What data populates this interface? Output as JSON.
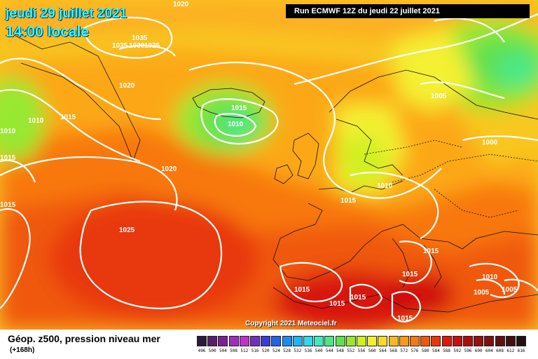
{
  "header": {
    "date": "jeudi 29 juillet 2021",
    "local_time": "14:00 locale",
    "run_info": "Run ECMWF 12Z du jeudi 22 juillet 2021"
  },
  "copyright": "Copyright 2021 Meteociel.fr",
  "footer": {
    "title": "Géop. z500, pression niveau mer",
    "lead_time": "(+168h)"
  },
  "isobar_labels": [
    "1020",
    "1035",
    "1035",
    "1030",
    "1025",
    "1020",
    "1015",
    "1010",
    "1015",
    "1010",
    "1015",
    "1010",
    "1015",
    "1005",
    "1000",
    "1020",
    "1010",
    "1015",
    "1025",
    "1015",
    "1015",
    "1015",
    "1015",
    "1015",
    "1010",
    "1005",
    "1005",
    "1015"
  ],
  "color_scale": {
    "levels": [
      "496",
      "500",
      "504",
      "508",
      "512",
      "516",
      "520",
      "524",
      "528",
      "532",
      "536",
      "540",
      "544",
      "548",
      "552",
      "556",
      "560",
      "564",
      "568",
      "572",
      "576",
      "580",
      "584",
      "588",
      "592",
      "596",
      "600",
      "604",
      "608",
      "612",
      "616"
    ],
    "colors": [
      "#2d1a3a",
      "#5a1d6e",
      "#7c1f96",
      "#a22cc0",
      "#c030cc",
      "#7030b8",
      "#3c3cd0",
      "#2460e8",
      "#1c8af0",
      "#20b4f0",
      "#30d8e8",
      "#40e8c0",
      "#48e888",
      "#60e050",
      "#98e830",
      "#d0f020",
      "#f4f030",
      "#fcd828",
      "#fcb820",
      "#fc9818",
      "#f87810",
      "#f05808",
      "#e83808",
      "#e01808",
      "#c81010",
      "#b00c0c",
      "#981010",
      "#801010",
      "#601010",
      "#401010",
      "#201010"
    ]
  }
}
